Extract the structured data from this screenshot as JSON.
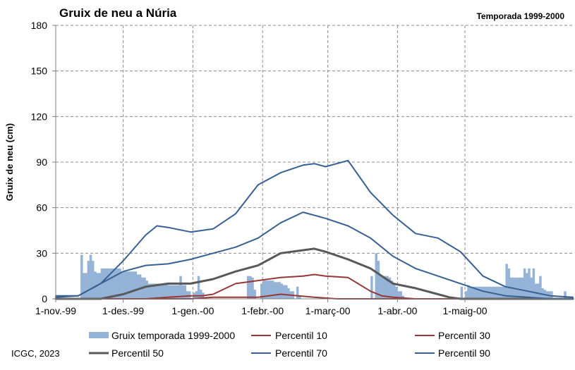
{
  "chart_data": {
    "type": "bar",
    "title": "Gruix de neu a Núria",
    "subtitle": "Temporada 1999-2000",
    "ylabel": "Gruix de neu (cm)",
    "xlabel": "",
    "ylim": [
      0,
      180
    ],
    "yticks": [
      "0",
      "30",
      "60",
      "90",
      "120",
      "150",
      "180"
    ],
    "xlim": [
      0,
      230
    ],
    "xticks": [
      {
        "day": 0,
        "label": "1-nov.-99"
      },
      {
        "day": 30,
        "label": "1-des.-99"
      },
      {
        "day": 61,
        "label": "1-gen.-00"
      },
      {
        "day": 92,
        "label": "1-febr.-00"
      },
      {
        "day": 121,
        "label": "1-març-00"
      },
      {
        "day": 152,
        "label": "1-abr.-00"
      },
      {
        "day": 182,
        "label": "1-maig-00"
      }
    ],
    "grid": true,
    "legend_position": "bottom",
    "credit": "ICGC, 2023",
    "bars": {
      "name": "Gruix temporada 1999-2000",
      "color": "#95b3d7",
      "values": [
        0,
        0,
        0,
        0,
        0,
        0,
        0,
        0,
        0,
        0,
        0,
        29,
        17,
        17,
        25,
        29,
        25,
        18,
        17,
        17,
        20,
        20,
        20,
        20,
        20,
        20,
        20,
        20,
        20,
        18,
        18,
        18,
        18,
        18,
        18,
        18,
        16,
        16,
        14,
        14,
        12,
        10,
        10,
        10,
        10,
        10,
        10,
        10,
        10,
        10,
        9,
        9,
        9,
        9,
        9,
        15,
        9,
        9,
        5,
        5,
        0,
        4,
        5,
        15,
        6,
        4,
        0,
        0,
        0,
        0,
        0,
        0,
        0,
        0,
        0,
        0,
        0,
        0,
        0,
        0,
        0,
        0,
        0,
        0,
        0,
        15,
        15,
        14,
        6,
        0,
        0,
        10,
        12,
        12,
        12,
        12,
        12,
        11,
        11,
        11,
        10,
        9,
        9,
        7,
        5,
        5,
        0,
        8,
        2,
        0,
        0,
        0,
        0,
        0,
        0,
        0,
        0,
        0,
        0,
        0,
        0,
        0,
        0,
        0,
        0,
        0,
        0,
        0,
        0,
        0,
        0,
        0,
        0,
        0,
        0,
        0,
        0,
        0,
        0,
        0,
        15,
        0,
        30,
        25,
        15,
        15,
        15,
        15,
        14,
        12,
        10,
        8,
        5,
        5,
        2,
        0,
        0,
        0,
        0,
        0,
        0,
        0,
        0,
        0,
        0,
        0,
        0,
        0,
        0,
        0,
        0,
        0,
        0,
        0,
        0,
        0,
        0,
        0,
        0,
        0,
        8,
        0,
        5,
        9,
        8,
        8,
        8,
        8,
        8,
        8,
        8,
        8,
        8,
        8,
        8,
        8,
        8,
        8,
        8,
        8,
        23,
        20,
        14,
        14,
        14,
        14,
        14,
        14,
        20,
        17,
        20,
        14,
        20,
        10,
        10,
        15,
        7,
        6,
        5,
        5,
        5,
        0,
        0,
        0,
        0,
        0,
        5,
        0,
        0,
        0,
        0
      ]
    },
    "series": [
      {
        "name": "Percentil 10",
        "color": "#953735",
        "width": 2,
        "x": [
          0,
          60,
          70,
          80,
          90,
          100,
          115,
          125,
          140,
          150,
          230
        ],
        "y": [
          0,
          0,
          1,
          1,
          1,
          3,
          1,
          0,
          0,
          0,
          0
        ]
      },
      {
        "name": "Percentil 30",
        "color": "#953735",
        "width": 2,
        "x": [
          0,
          40,
          50,
          60,
          65,
          70,
          80,
          90,
          100,
          110,
          115,
          120,
          130,
          140,
          145,
          150,
          160,
          230
        ],
        "y": [
          0,
          0,
          1,
          2,
          2,
          3,
          10,
          12,
          14,
          15,
          16,
          15,
          14,
          5,
          2,
          1,
          0,
          0
        ]
      },
      {
        "name": "Percentil 50",
        "color": "#595959",
        "width": 3,
        "x": [
          0,
          20,
          30,
          40,
          50,
          60,
          70,
          80,
          90,
          100,
          110,
          115,
          120,
          130,
          140,
          150,
          160,
          170,
          175,
          180,
          230
        ],
        "y": [
          0,
          0,
          3,
          8,
          10,
          10,
          13,
          18,
          22,
          30,
          32,
          33,
          31,
          26,
          20,
          10,
          7,
          3,
          1,
          0,
          0
        ]
      },
      {
        "name": "Percentil 70",
        "color": "#376092",
        "width": 2,
        "x": [
          0,
          10,
          20,
          30,
          40,
          50,
          60,
          70,
          80,
          90,
          100,
          110,
          120,
          130,
          140,
          150,
          160,
          170,
          180,
          190,
          200,
          210,
          220,
          230
        ],
        "y": [
          1,
          2,
          10,
          18,
          22,
          23,
          26,
          30,
          34,
          40,
          50,
          57,
          53,
          48,
          40,
          28,
          20,
          15,
          10,
          5,
          2,
          1,
          0,
          0
        ]
      },
      {
        "name": "Percentil 90",
        "color": "#376092",
        "width": 2,
        "x": [
          0,
          5,
          10,
          20,
          30,
          40,
          45,
          50,
          60,
          70,
          80,
          90,
          100,
          110,
          115,
          120,
          130,
          140,
          150,
          160,
          170,
          180,
          190,
          200,
          210,
          220,
          230
        ],
        "y": [
          2,
          2,
          2,
          10,
          25,
          42,
          48,
          47,
          44,
          46,
          56,
          75,
          83,
          88,
          89,
          87,
          91,
          70,
          55,
          43,
          40,
          31,
          15,
          8,
          5,
          2,
          1
        ]
      }
    ]
  }
}
